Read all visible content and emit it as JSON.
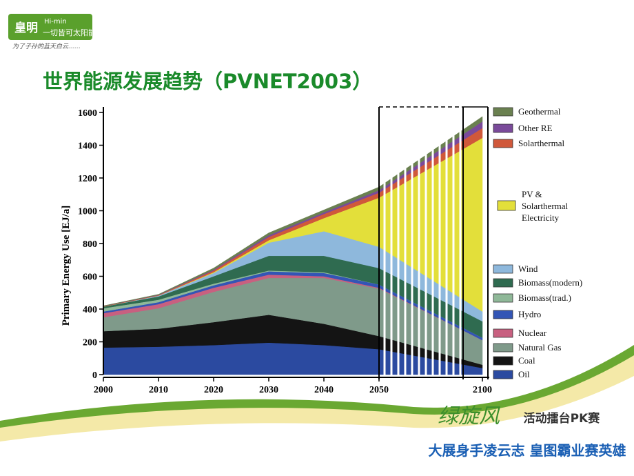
{
  "logo": {
    "cn": "皇明",
    "brand": "Hi-min",
    "slogan": "一切皆可太阳能",
    "tagline": "为了子孙的蓝天白云……"
  },
  "title": "世界能源发展趋势（PVNET2003）",
  "footer": {
    "brand": "绿旋风",
    "event": "活动擂台PK赛",
    "motto": "大展身手凌云志 皇图霸业赛英雄"
  },
  "chart_data": {
    "type": "stacked_area",
    "y_label": "Primary Energy Use [EJ/a]",
    "x": [
      2000,
      2010,
      2020,
      2030,
      2040,
      2050,
      2100
    ],
    "xticks": [
      2000,
      2010,
      2020,
      2030,
      2040,
      2050,
      2100
    ],
    "ylim": [
      0,
      1600
    ],
    "yticks": [
      0,
      200,
      400,
      600,
      800,
      1000,
      1200,
      1400,
      1600
    ],
    "series": [
      {
        "name": "Oil",
        "color": "#2b4aa0",
        "values": [
          165,
          170,
          180,
          195,
          180,
          155,
          40
        ]
      },
      {
        "name": "Coal",
        "color": "#141414",
        "values": [
          100,
          110,
          140,
          170,
          130,
          80,
          20
        ]
      },
      {
        "name": "Natural Gas",
        "color": "#7f9a8a",
        "values": [
          85,
          125,
          185,
          225,
          280,
          290,
          150
        ]
      },
      {
        "name": "Nuclear",
        "color": "#c86080",
        "values": [
          25,
          25,
          25,
          20,
          10,
          5,
          0
        ]
      },
      {
        "name": "Hydro",
        "color": "#3355b5",
        "values": [
          10,
          12,
          15,
          20,
          20,
          20,
          15
        ]
      },
      {
        "name": "Biomass(trad.)",
        "color": "#8fb898",
        "values": [
          20,
          15,
          10,
          5,
          5,
          0,
          0
        ]
      },
      {
        "name": "Biomass(modern)",
        "color": "#2f6b50",
        "values": [
          10,
          20,
          45,
          90,
          100,
          100,
          100
        ]
      },
      {
        "name": "Wind",
        "color": "#8eb8dc",
        "values": [
          0,
          5,
          20,
          80,
          150,
          130,
          60
        ]
      },
      {
        "name": "PV & Solarthermal Electricity",
        "color": "#e3df3a",
        "values": [
          0,
          0,
          5,
          15,
          80,
          300,
          1060
        ]
      },
      {
        "name": "Solarthermal",
        "color": "#d0583a",
        "values": [
          2,
          3,
          10,
          20,
          25,
          30,
          60
        ]
      },
      {
        "name": "Other RE",
        "color": "#7a4a9a",
        "values": [
          1,
          2,
          5,
          10,
          10,
          15,
          40
        ]
      },
      {
        "name": "Geothermal",
        "color": "#6a8050",
        "values": [
          2,
          3,
          10,
          15,
          15,
          20,
          30
        ]
      }
    ]
  }
}
